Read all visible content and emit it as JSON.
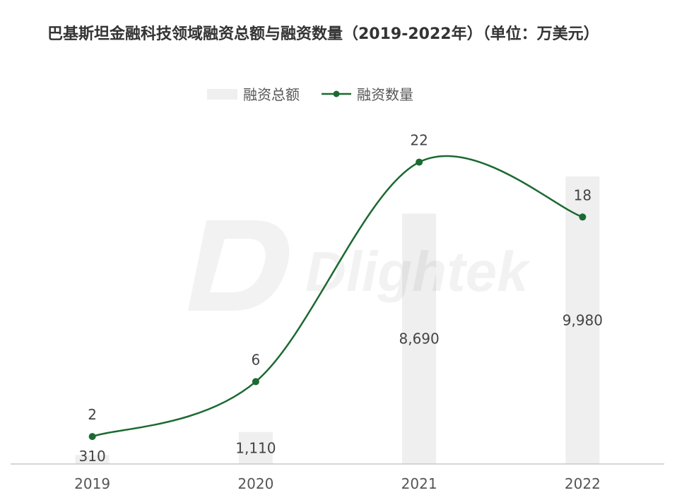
{
  "chart_data": {
    "type": "bar",
    "title": "巴基斯坦金融科技领域融资总额与融资数量（2019-2022年）（单位：万美元）",
    "categories": [
      "2019",
      "2020",
      "2021",
      "2022"
    ],
    "series": [
      {
        "name": "融资总额",
        "type": "bar",
        "values": [
          310,
          1110,
          8690,
          9980
        ],
        "labels": [
          "310",
          "1,110",
          "8,690",
          "9,980"
        ],
        "color": "#efefef"
      },
      {
        "name": "融资数量",
        "type": "line",
        "axis": "right",
        "values": [
          2,
          6,
          22,
          18
        ],
        "labels": [
          "2",
          "6",
          "22",
          "18"
        ],
        "color": "#1b6a31"
      }
    ],
    "xlabel": "",
    "ylabel": "",
    "ylim": [
      0,
      10000
    ],
    "y2lim": [
      0,
      21
    ],
    "grid": false,
    "legend": "top-center"
  },
  "watermark": {
    "text": "Dlightek"
  }
}
